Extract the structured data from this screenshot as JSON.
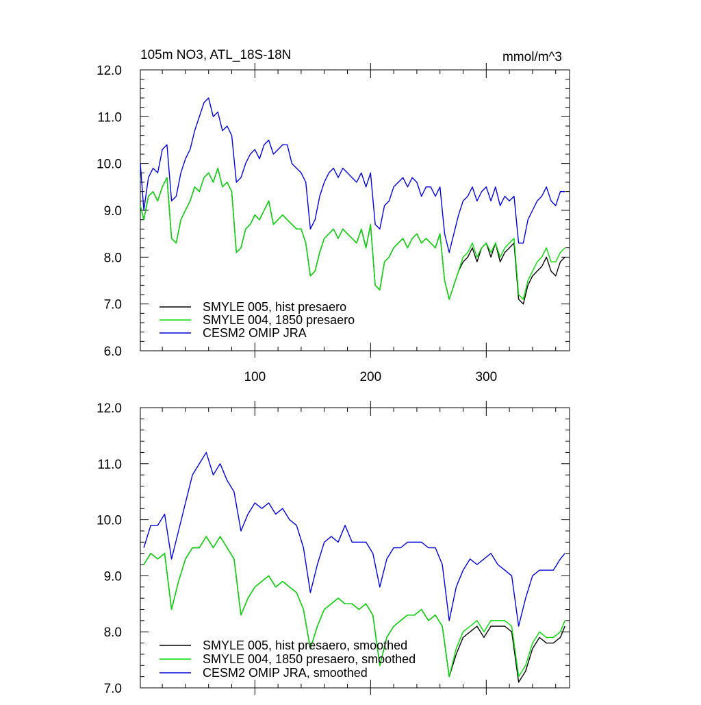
{
  "chart_data": [
    {
      "type": "line",
      "title": "105m NO3, ATL_18S-18N",
      "units": "mmol/m^3",
      "xlim": [
        1,
        372
      ],
      "ylim": [
        6.0,
        12.0
      ],
      "xticks": [
        100,
        200,
        300
      ],
      "xticklabels": [
        "100",
        "200",
        "300"
      ],
      "yticks": [
        6.0,
        7.0,
        8.0,
        9.0,
        10.0,
        11.0,
        12.0
      ],
      "yticklabels": [
        "6.0",
        "7.0",
        "8.0",
        "9.0",
        "10.0",
        "11.0",
        "12.0"
      ],
      "legend_position": "bottom-left",
      "series": [
        {
          "name": "SMYLE 005, hist presaero",
          "color": "#000000",
          "x": [
            1,
            4,
            8,
            12,
            16,
            20,
            24,
            28,
            32,
            36,
            40,
            44,
            48,
            52,
            56,
            60,
            64,
            68,
            72,
            76,
            80,
            84,
            88,
            92,
            96,
            100,
            104,
            108,
            112,
            116,
            120,
            124,
            128,
            132,
            136,
            140,
            144,
            148,
            152,
            156,
            160,
            164,
            168,
            172,
            176,
            180,
            184,
            188,
            192,
            196,
            200,
            204,
            208,
            212,
            216,
            220,
            224,
            228,
            232,
            236,
            240,
            244,
            248,
            252,
            256,
            260,
            264,
            268,
            272,
            276,
            280,
            284,
            288,
            292,
            296,
            300,
            304,
            308,
            312,
            316,
            320,
            324,
            328,
            332,
            336,
            340,
            344,
            348,
            352,
            356,
            360,
            364,
            368
          ],
          "values": [
            9.1,
            8.8,
            9.3,
            9.4,
            9.2,
            9.5,
            9.7,
            8.4,
            8.3,
            8.8,
            9.0,
            9.2,
            9.5,
            9.4,
            9.7,
            9.8,
            9.6,
            9.9,
            9.5,
            9.6,
            9.4,
            8.1,
            8.2,
            8.6,
            8.7,
            8.9,
            8.8,
            9.0,
            9.2,
            8.7,
            8.8,
            8.9,
            8.8,
            8.7,
            8.6,
            8.6,
            8.3,
            7.6,
            7.7,
            8.1,
            8.4,
            8.5,
            8.6,
            8.4,
            8.6,
            8.5,
            8.4,
            8.3,
            8.6,
            8.2,
            8.7,
            7.4,
            7.3,
            7.9,
            8.0,
            8.2,
            8.3,
            8.4,
            8.2,
            8.4,
            8.5,
            8.3,
            8.4,
            8.3,
            8.2,
            8.5,
            7.5,
            7.1,
            7.4,
            7.7,
            7.9,
            8.0,
            8.2,
            7.9,
            8.2,
            8.3,
            8.0,
            8.3,
            7.9,
            8.1,
            8.2,
            8.3,
            7.1,
            7.0,
            7.4,
            7.6,
            7.7,
            7.8,
            8.0,
            7.7,
            7.6,
            7.9,
            8.0
          ]
        },
        {
          "name": "SMYLE 004, 1850 presaero",
          "color": "#00dd00",
          "x": [
            1,
            4,
            8,
            12,
            16,
            20,
            24,
            28,
            32,
            36,
            40,
            44,
            48,
            52,
            56,
            60,
            64,
            68,
            72,
            76,
            80,
            84,
            88,
            92,
            96,
            100,
            104,
            108,
            112,
            116,
            120,
            124,
            128,
            132,
            136,
            140,
            144,
            148,
            152,
            156,
            160,
            164,
            168,
            172,
            176,
            180,
            184,
            188,
            192,
            196,
            200,
            204,
            208,
            212,
            216,
            220,
            224,
            228,
            232,
            236,
            240,
            244,
            248,
            252,
            256,
            260,
            264,
            268,
            272,
            276,
            280,
            284,
            288,
            292,
            296,
            300,
            304,
            308,
            312,
            316,
            320,
            324,
            328,
            332,
            336,
            340,
            344,
            348,
            352,
            356,
            360,
            364,
            368
          ],
          "values": [
            9.1,
            8.8,
            9.3,
            9.4,
            9.2,
            9.5,
            9.7,
            8.4,
            8.3,
            8.8,
            9.0,
            9.2,
            9.5,
            9.4,
            9.7,
            9.8,
            9.6,
            9.9,
            9.5,
            9.6,
            9.4,
            8.1,
            8.2,
            8.6,
            8.7,
            8.9,
            8.8,
            9.0,
            9.2,
            8.7,
            8.8,
            8.9,
            8.8,
            8.7,
            8.6,
            8.6,
            8.3,
            7.6,
            7.7,
            8.1,
            8.4,
            8.5,
            8.6,
            8.4,
            8.6,
            8.5,
            8.4,
            8.3,
            8.6,
            8.2,
            8.7,
            7.4,
            7.3,
            7.9,
            8.0,
            8.2,
            8.3,
            8.4,
            8.2,
            8.4,
            8.5,
            8.3,
            8.4,
            8.3,
            8.2,
            8.5,
            7.5,
            7.1,
            7.4,
            7.7,
            8.0,
            8.1,
            8.3,
            8.0,
            8.2,
            8.3,
            8.1,
            8.3,
            8.0,
            8.2,
            8.3,
            8.4,
            7.2,
            7.1,
            7.5,
            7.7,
            7.9,
            8.0,
            8.2,
            7.9,
            7.9,
            8.1,
            8.2
          ]
        },
        {
          "name": "CESM2 OMIP JRA",
          "color": "#0000dd",
          "x": [
            1,
            4,
            8,
            12,
            16,
            20,
            24,
            28,
            32,
            36,
            40,
            44,
            48,
            52,
            56,
            60,
            64,
            68,
            72,
            76,
            80,
            84,
            88,
            92,
            96,
            100,
            104,
            108,
            112,
            116,
            120,
            124,
            128,
            132,
            136,
            140,
            144,
            148,
            152,
            156,
            160,
            164,
            168,
            172,
            176,
            180,
            184,
            188,
            192,
            196,
            200,
            204,
            208,
            212,
            216,
            220,
            224,
            228,
            232,
            236,
            240,
            244,
            248,
            252,
            256,
            260,
            264,
            268,
            272,
            276,
            280,
            284,
            288,
            292,
            296,
            300,
            304,
            308,
            312,
            316,
            320,
            324,
            328,
            332,
            336,
            340,
            344,
            348,
            352,
            356,
            360,
            364,
            368
          ],
          "values": [
            10.0,
            9.0,
            9.7,
            9.9,
            9.8,
            10.3,
            10.4,
            9.2,
            9.3,
            9.8,
            10.1,
            10.3,
            10.7,
            11.0,
            11.3,
            11.4,
            11.0,
            11.1,
            10.7,
            10.8,
            10.6,
            9.6,
            9.7,
            10.0,
            10.2,
            10.3,
            10.1,
            10.4,
            10.5,
            10.2,
            10.3,
            10.4,
            10.4,
            10.0,
            9.9,
            9.8,
            9.6,
            8.6,
            8.8,
            9.3,
            9.6,
            9.8,
            9.9,
            9.7,
            9.9,
            9.8,
            9.7,
            9.6,
            9.8,
            9.5,
            9.8,
            8.7,
            8.6,
            9.1,
            9.2,
            9.5,
            9.6,
            9.7,
            9.5,
            9.7,
            9.6,
            9.3,
            9.5,
            9.5,
            9.3,
            9.5,
            8.5,
            8.1,
            8.5,
            8.9,
            9.2,
            9.3,
            9.5,
            9.2,
            9.4,
            9.5,
            9.2,
            9.5,
            9.1,
            9.3,
            9.2,
            9.3,
            8.3,
            8.3,
            8.8,
            9.0,
            9.2,
            9.3,
            9.5,
            9.2,
            9.1,
            9.4,
            9.4
          ]
        }
      ]
    },
    {
      "type": "line",
      "title": "",
      "units": "",
      "xlim": [
        1,
        372
      ],
      "ylim": [
        7.0,
        12.0
      ],
      "xticks": [
        100,
        200,
        300
      ],
      "xticklabels": [],
      "yticks": [
        7.0,
        8.0,
        9.0,
        10.0,
        11.0,
        12.0
      ],
      "yticklabels": [
        "7.0",
        "8.0",
        "9.0",
        "10.0",
        "11.0",
        "12.0"
      ],
      "legend_position": "bottom-left",
      "series": [
        {
          "name": "SMYLE 005, hist presaero, smoothed",
          "color": "#000000",
          "x": [
            4,
            10,
            16,
            22,
            28,
            34,
            40,
            46,
            52,
            58,
            64,
            70,
            76,
            82,
            88,
            94,
            100,
            106,
            112,
            118,
            124,
            130,
            136,
            142,
            148,
            154,
            160,
            166,
            172,
            178,
            184,
            190,
            196,
            202,
            208,
            214,
            220,
            226,
            232,
            238,
            244,
            250,
            256,
            262,
            268,
            274,
            280,
            286,
            292,
            298,
            304,
            310,
            316,
            322,
            328,
            334,
            340,
            346,
            352,
            358,
            364,
            368
          ],
          "values": [
            9.2,
            9.4,
            9.3,
            9.4,
            8.4,
            8.9,
            9.3,
            9.5,
            9.5,
            9.7,
            9.5,
            9.7,
            9.5,
            9.3,
            8.3,
            8.6,
            8.8,
            8.9,
            9.0,
            8.8,
            8.9,
            8.8,
            8.7,
            8.4,
            7.7,
            8.1,
            8.4,
            8.5,
            8.6,
            8.5,
            8.5,
            8.4,
            8.5,
            8.3,
            7.4,
            7.9,
            8.1,
            8.2,
            8.3,
            8.3,
            8.4,
            8.2,
            8.3,
            8.1,
            7.2,
            7.6,
            7.9,
            8.0,
            8.1,
            7.9,
            8.1,
            8.1,
            8.1,
            8.0,
            7.1,
            7.3,
            7.7,
            7.9,
            7.8,
            7.8,
            7.9,
            8.1
          ]
        },
        {
          "name": "SMYLE 004, 1850 presaero, smoothed",
          "color": "#00dd00",
          "x": [
            4,
            10,
            16,
            22,
            28,
            34,
            40,
            46,
            52,
            58,
            64,
            70,
            76,
            82,
            88,
            94,
            100,
            106,
            112,
            118,
            124,
            130,
            136,
            142,
            148,
            154,
            160,
            166,
            172,
            178,
            184,
            190,
            196,
            202,
            208,
            214,
            220,
            226,
            232,
            238,
            244,
            250,
            256,
            262,
            268,
            274,
            280,
            286,
            292,
            298,
            304,
            310,
            316,
            322,
            328,
            334,
            340,
            346,
            352,
            358,
            364,
            368
          ],
          "values": [
            9.2,
            9.4,
            9.3,
            9.4,
            8.4,
            8.9,
            9.3,
            9.5,
            9.5,
            9.7,
            9.5,
            9.7,
            9.5,
            9.3,
            8.3,
            8.6,
            8.8,
            8.9,
            9.0,
            8.8,
            8.9,
            8.8,
            8.7,
            8.4,
            7.7,
            8.1,
            8.4,
            8.5,
            8.6,
            8.5,
            8.5,
            8.4,
            8.5,
            8.3,
            7.4,
            7.9,
            8.1,
            8.2,
            8.3,
            8.3,
            8.4,
            8.2,
            8.3,
            8.1,
            7.2,
            7.7,
            8.0,
            8.1,
            8.2,
            8.0,
            8.2,
            8.2,
            8.2,
            8.1,
            7.2,
            7.4,
            7.8,
            8.0,
            7.9,
            7.9,
            8.0,
            8.2
          ]
        },
        {
          "name": "CESM2 OMIP JRA, smoothed",
          "color": "#0000dd",
          "x": [
            4,
            10,
            16,
            22,
            28,
            34,
            40,
            46,
            52,
            58,
            64,
            70,
            76,
            82,
            88,
            94,
            100,
            106,
            112,
            118,
            124,
            130,
            136,
            142,
            148,
            154,
            160,
            166,
            172,
            178,
            184,
            190,
            196,
            202,
            208,
            214,
            220,
            226,
            232,
            238,
            244,
            250,
            256,
            262,
            268,
            274,
            280,
            286,
            292,
            298,
            304,
            310,
            316,
            322,
            328,
            334,
            340,
            346,
            352,
            358,
            364,
            368
          ],
          "values": [
            9.5,
            9.9,
            9.9,
            10.1,
            9.3,
            9.8,
            10.3,
            10.8,
            11.0,
            11.2,
            10.8,
            11.0,
            10.7,
            10.5,
            9.8,
            10.1,
            10.3,
            10.2,
            10.3,
            10.1,
            10.2,
            10.0,
            9.9,
            9.5,
            8.7,
            9.2,
            9.6,
            9.7,
            9.6,
            9.9,
            9.6,
            9.6,
            9.6,
            9.4,
            8.8,
            9.3,
            9.5,
            9.5,
            9.6,
            9.6,
            9.6,
            9.5,
            9.5,
            9.2,
            8.2,
            8.8,
            9.1,
            9.3,
            9.2,
            9.3,
            9.4,
            9.2,
            9.1,
            9.0,
            8.1,
            8.6,
            9.0,
            9.1,
            9.1,
            9.1,
            9.3,
            9.4
          ]
        }
      ]
    }
  ]
}
